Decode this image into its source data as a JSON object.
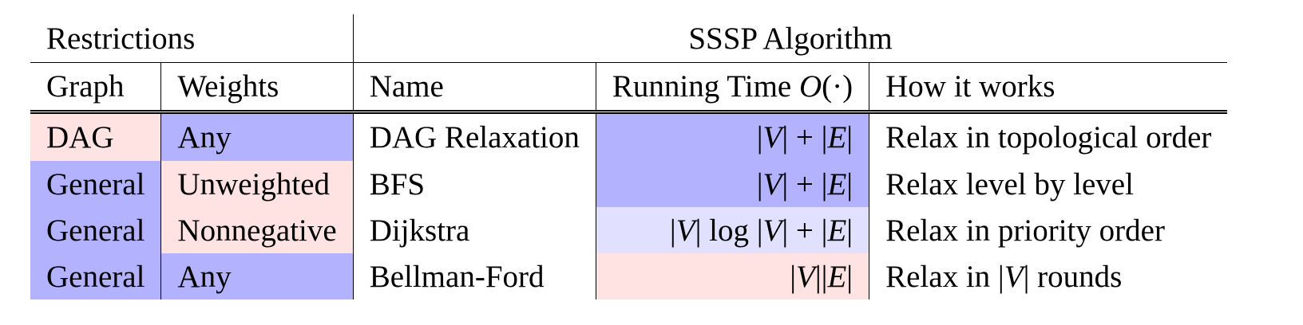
{
  "header": {
    "restrictions": "Restrictions",
    "algorithm": "SSSP Algorithm"
  },
  "columns": {
    "graph": "Graph",
    "weights": "Weights",
    "name": "Name",
    "running_time": "Running Time O(·)",
    "how": "How it works"
  },
  "rows": [
    {
      "graph": "DAG",
      "weights": "Any",
      "name": "DAG Relaxation",
      "time": "|V| + |E|",
      "how": "Relax in topological order",
      "graph_color": "#ffe2e2",
      "weights_color": "#b2b2ff",
      "time_color": "#b2b2ff"
    },
    {
      "graph": "General",
      "weights": "Unweighted",
      "name": "BFS",
      "time": "|V| + |E|",
      "how": "Relax level by level",
      "graph_color": "#b2b2ff",
      "weights_color": "#ffe2e2",
      "time_color": "#b2b2ff"
    },
    {
      "graph": "General",
      "weights": "Nonnegative",
      "name": "Dijkstra",
      "time": "|V| log |V| + |E|",
      "how": "Relax in priority order",
      "graph_color": "#b2b2ff",
      "weights_color": "#ffe2e2",
      "time_color": "#e1e1ff"
    },
    {
      "graph": "General",
      "weights": "Any",
      "name": "Bellman-Ford",
      "time": "|V||E|",
      "how": "Relax in |V| rounds",
      "graph_color": "#b2b2ff",
      "weights_color": "#b2b2ff",
      "time_color": "#ffe2e2"
    }
  ]
}
